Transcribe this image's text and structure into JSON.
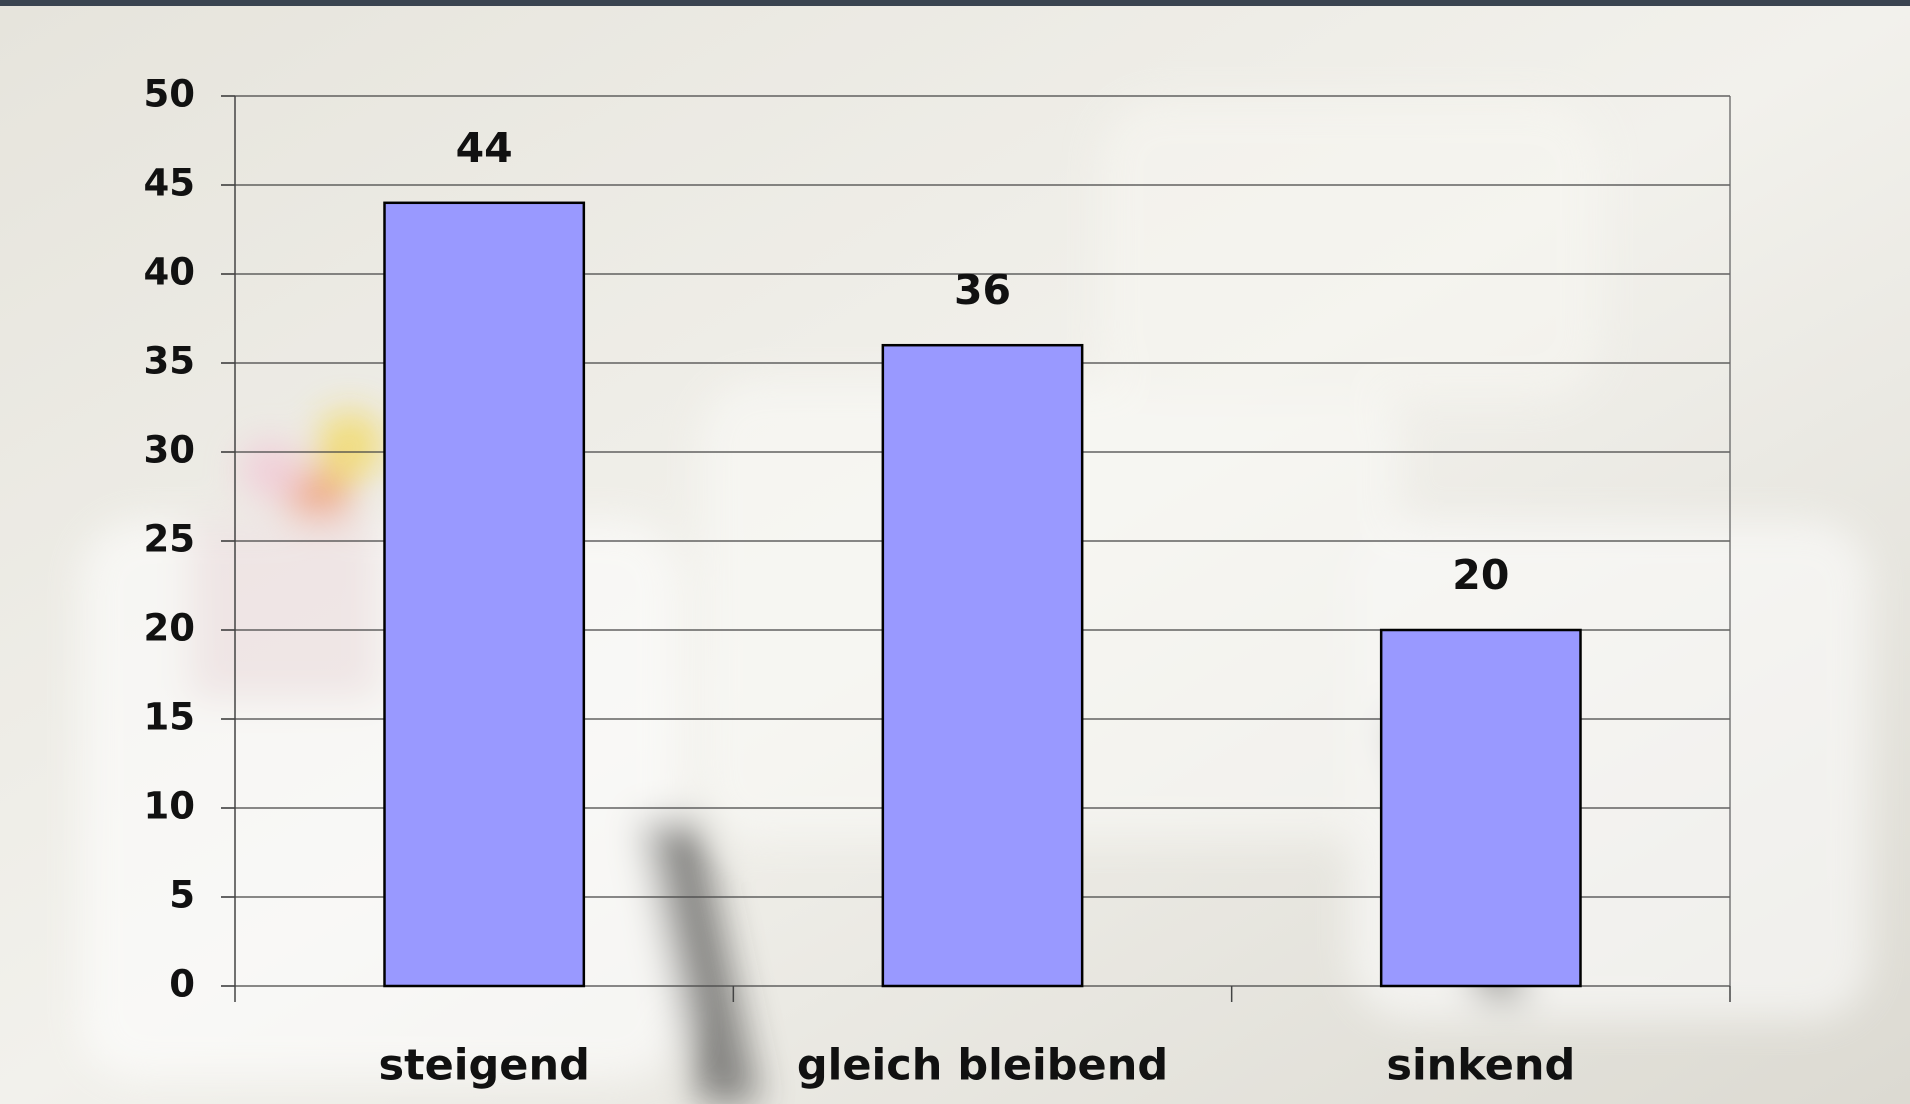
{
  "chart_data": {
    "type": "bar",
    "categories": [
      "steigend",
      "gleich bleibend",
      "sinkend"
    ],
    "values": [
      44,
      36,
      20
    ],
    "color": "#9999ff",
    "ylim": [
      0,
      50
    ],
    "yticks": [
      0,
      5,
      10,
      15,
      20,
      25,
      30,
      35,
      40,
      45,
      50
    ],
    "grid": true
  }
}
